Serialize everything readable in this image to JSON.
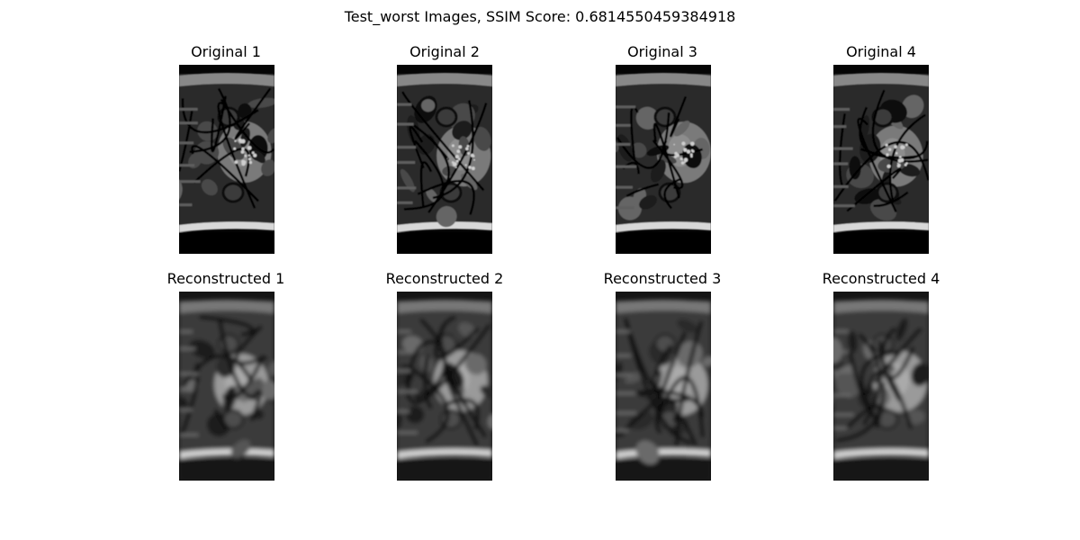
{
  "figure": {
    "title": "Test_worst Images, SSIM Score: 0.6814550459384918"
  },
  "rows": [
    {
      "row": "original",
      "panels": [
        {
          "title": "Original 1",
          "variant": 0
        },
        {
          "title": "Original 2",
          "variant": 1
        },
        {
          "title": "Original 3",
          "variant": 2
        },
        {
          "title": "Original 4",
          "variant": 3
        }
      ]
    },
    {
      "row": "reconstructed",
      "panels": [
        {
          "title": "Reconstructed 1",
          "variant": 0
        },
        {
          "title": "Reconstructed 2",
          "variant": 1
        },
        {
          "title": "Reconstructed 3",
          "variant": 2
        },
        {
          "title": "Reconstructed 4",
          "variant": 3
        }
      ]
    }
  ],
  "colors": {
    "background": "#ffffff",
    "text": "#000000",
    "scan_background": "#050505",
    "reconstructed_background": "#151515"
  }
}
